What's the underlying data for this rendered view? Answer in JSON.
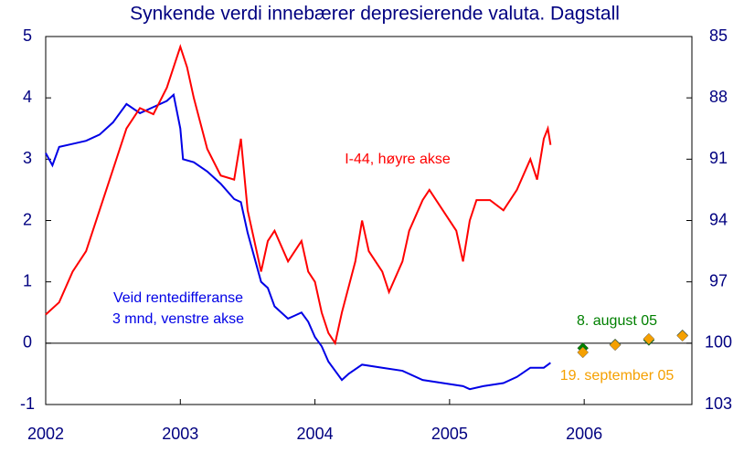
{
  "chart_data": {
    "type": "line",
    "title": "Synkende verdi innebærer depresierende valuta. Dagstall",
    "xlim": [
      2002,
      2006.8
    ],
    "xticks": [
      2002,
      2003,
      2004,
      2005,
      2006
    ],
    "ylim": [
      -1,
      5
    ],
    "yticks": [
      -1,
      0,
      1,
      2,
      3,
      4,
      5
    ],
    "y2lim": [
      103,
      85
    ],
    "y2ticks": [
      103,
      100,
      97,
      94,
      91,
      88,
      85
    ],
    "series": [
      {
        "name": [
          "Veid rentedifferanse",
          "3 mnd, venstre akse"
        ],
        "color": "#0000e6",
        "type": "line",
        "axis": "y",
        "x": [
          2002.0,
          2002.05,
          2002.1,
          2002.2,
          2002.3,
          2002.4,
          2002.5,
          2002.6,
          2002.7,
          2002.8,
          2002.9,
          2002.95,
          2003.0,
          2003.02,
          2003.1,
          2003.2,
          2003.3,
          2003.4,
          2003.45,
          2003.5,
          2003.55,
          2003.6,
          2003.65,
          2003.7,
          2003.75,
          2003.8,
          2003.85,
          2003.9,
          2003.95,
          2004.0,
          2004.05,
          2004.1,
          2004.15,
          2004.2,
          2004.25,
          2004.35,
          2004.5,
          2004.65,
          2004.8,
          2004.95,
          2005.1,
          2005.15,
          2005.25,
          2005.4,
          2005.5,
          2005.6,
          2005.7,
          2005.75
        ],
        "values": [
          3.1,
          2.9,
          3.2,
          3.25,
          3.3,
          3.4,
          3.6,
          3.9,
          3.75,
          3.85,
          3.95,
          4.05,
          3.5,
          3.0,
          2.95,
          2.8,
          2.6,
          2.35,
          2.3,
          1.8,
          1.4,
          1.0,
          0.9,
          0.6,
          0.5,
          0.4,
          0.45,
          0.5,
          0.35,
          0.1,
          -0.05,
          -0.3,
          -0.45,
          -0.6,
          -0.5,
          -0.35,
          -0.4,
          -0.45,
          -0.6,
          -0.65,
          -0.7,
          -0.75,
          -0.7,
          -0.65,
          -0.55,
          -0.4,
          -0.4,
          -0.32
        ]
      },
      {
        "name": "I-44, høyre akse",
        "color": "#ff0000",
        "type": "line",
        "axis": "y2",
        "x": [
          2002.0,
          2002.1,
          2002.2,
          2002.3,
          2002.4,
          2002.5,
          2002.6,
          2002.7,
          2002.8,
          2002.9,
          2003.0,
          2003.05,
          2003.1,
          2003.2,
          2003.3,
          2003.4,
          2003.45,
          2003.5,
          2003.6,
          2003.65,
          2003.7,
          2003.8,
          2003.9,
          2003.95,
          2004.0,
          2004.05,
          2004.1,
          2004.15,
          2004.2,
          2004.3,
          2004.35,
          2004.4,
          2004.5,
          2004.55,
          2004.65,
          2004.7,
          2004.8,
          2004.85,
          2004.95,
          2005.05,
          2005.1,
          2005.15,
          2005.2,
          2005.3,
          2005.4,
          2005.5,
          2005.6,
          2005.65,
          2005.7,
          2005.73,
          2005.75
        ],
        "values": [
          98.6,
          98.0,
          96.5,
          95.5,
          93.5,
          91.5,
          89.5,
          88.5,
          88.8,
          87.5,
          85.5,
          86.5,
          88.0,
          90.5,
          91.8,
          92.0,
          90.0,
          93.5,
          96.5,
          95.0,
          94.5,
          96.0,
          95.0,
          96.5,
          97.0,
          98.5,
          99.5,
          100.0,
          98.5,
          96.0,
          94.0,
          95.5,
          96.5,
          97.5,
          96.0,
          94.5,
          93.0,
          92.5,
          93.5,
          94.5,
          96.0,
          94.0,
          93.0,
          93.0,
          93.5,
          92.5,
          91.0,
          92.0,
          90.0,
          89.5,
          90.3
        ]
      },
      {
        "name": "8. august 05",
        "color": "#008000",
        "type": "scatter",
        "axis": "y",
        "x": [
          2005.99,
          2006.23,
          2006.48,
          2006.73
        ],
        "values": [
          -0.08,
          -0.02,
          0.05,
          0.13
        ]
      },
      {
        "name": "19. september 05",
        "color": "#f5a000",
        "type": "scatter",
        "axis": "y",
        "x": [
          2005.99,
          2006.23,
          2006.48,
          2006.73
        ],
        "values": [
          -0.15,
          -0.03,
          0.07,
          0.12
        ]
      }
    ]
  }
}
